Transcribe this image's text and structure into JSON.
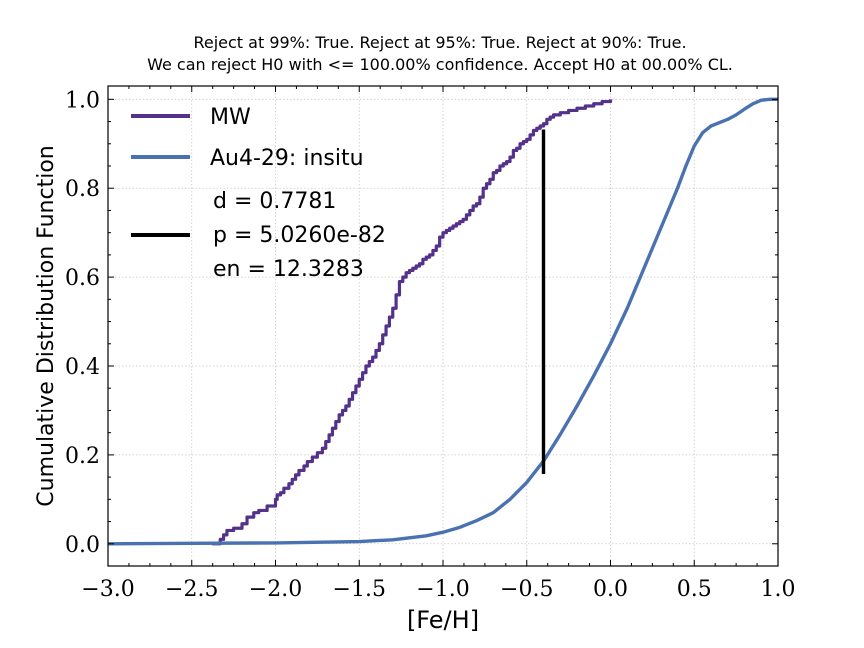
{
  "chart_data": {
    "type": "line",
    "title_lines": [
      "Reject at 99%: True. Reject at 95%: True. Reject at 90%: True.",
      "We can reject H0 with <= 100.00% confidence. Accept H0 at 00.00% CL."
    ],
    "xlabel": "[Fe/H]",
    "ylabel": "Cumulative Distribution Function",
    "xlim": [
      -3.0,
      1.0
    ],
    "ylim": [
      -0.05,
      1.03
    ],
    "x_ticks": [
      -3.0,
      -2.5,
      -2.0,
      -1.5,
      -1.0,
      -0.5,
      0.0,
      0.5,
      1.0
    ],
    "x_tick_labels": [
      "−3.0",
      "−2.5",
      "−2.0",
      "−1.5",
      "−1.0",
      "−0.5",
      "0.0",
      "0.5",
      "1.0"
    ],
    "y_ticks": [
      0.0,
      0.2,
      0.4,
      0.6,
      0.8,
      1.0
    ],
    "y_tick_labels": [
      "0.0",
      "0.2",
      "0.4",
      "0.6",
      "0.8",
      "1.0"
    ],
    "grid": true,
    "legend_position": "upper-left",
    "series": [
      {
        "name": "MW",
        "style": "step",
        "color": "#54318a",
        "x": [
          -2.38,
          -2.33,
          -2.31,
          -2.29,
          -2.25,
          -2.2,
          -2.17,
          -2.13,
          -2.1,
          -2.05,
          -2.0,
          -1.99,
          -1.97,
          -1.95,
          -1.92,
          -1.9,
          -1.88,
          -1.86,
          -1.83,
          -1.81,
          -1.78,
          -1.75,
          -1.72,
          -1.7,
          -1.68,
          -1.66,
          -1.64,
          -1.62,
          -1.6,
          -1.58,
          -1.56,
          -1.54,
          -1.52,
          -1.5,
          -1.48,
          -1.46,
          -1.44,
          -1.42,
          -1.4,
          -1.38,
          -1.36,
          -1.34,
          -1.32,
          -1.3,
          -1.28,
          -1.26,
          -1.24,
          -1.22,
          -1.2,
          -1.18,
          -1.16,
          -1.14,
          -1.12,
          -1.1,
          -1.08,
          -1.06,
          -1.04,
          -1.02,
          -1.0,
          -0.98,
          -0.96,
          -0.94,
          -0.92,
          -0.9,
          -0.88,
          -0.86,
          -0.84,
          -0.82,
          -0.8,
          -0.78,
          -0.76,
          -0.74,
          -0.72,
          -0.7,
          -0.68,
          -0.66,
          -0.64,
          -0.62,
          -0.6,
          -0.58,
          -0.56,
          -0.54,
          -0.52,
          -0.5,
          -0.48,
          -0.46,
          -0.44,
          -0.42,
          -0.4,
          -0.38,
          -0.36,
          -0.34,
          -0.3,
          -0.25,
          -0.2,
          -0.15,
          -0.1,
          -0.05,
          0.0
        ],
        "y": [
          0.0,
          0.01,
          0.02,
          0.03,
          0.035,
          0.045,
          0.06,
          0.07,
          0.075,
          0.085,
          0.1,
          0.11,
          0.115,
          0.125,
          0.135,
          0.145,
          0.155,
          0.165,
          0.175,
          0.185,
          0.195,
          0.205,
          0.215,
          0.23,
          0.245,
          0.26,
          0.275,
          0.29,
          0.3,
          0.31,
          0.325,
          0.34,
          0.355,
          0.37,
          0.385,
          0.4,
          0.41,
          0.42,
          0.435,
          0.45,
          0.47,
          0.49,
          0.51,
          0.53,
          0.56,
          0.59,
          0.6,
          0.61,
          0.615,
          0.62,
          0.625,
          0.63,
          0.64,
          0.645,
          0.65,
          0.66,
          0.67,
          0.69,
          0.7,
          0.705,
          0.71,
          0.715,
          0.72,
          0.725,
          0.73,
          0.74,
          0.75,
          0.76,
          0.765,
          0.78,
          0.8,
          0.81,
          0.82,
          0.835,
          0.84,
          0.85,
          0.855,
          0.86,
          0.87,
          0.885,
          0.89,
          0.9,
          0.905,
          0.91,
          0.92,
          0.93,
          0.935,
          0.94,
          0.945,
          0.955,
          0.96,
          0.965,
          0.97,
          0.975,
          0.98,
          0.985,
          0.99,
          0.995,
          1.0
        ]
      },
      {
        "name": "Au4-29: insitu",
        "style": "line",
        "color": "#4a72b0",
        "x": [
          -3.0,
          -2.5,
          -2.0,
          -1.5,
          -1.3,
          -1.1,
          -1.0,
          -0.9,
          -0.8,
          -0.7,
          -0.6,
          -0.5,
          -0.4,
          -0.3,
          -0.2,
          -0.1,
          0.0,
          0.1,
          0.2,
          0.3,
          0.4,
          0.45,
          0.5,
          0.55,
          0.6,
          0.7,
          0.75,
          0.8,
          0.85,
          0.9,
          0.95,
          1.0
        ],
        "y": [
          0.0,
          0.001,
          0.002,
          0.005,
          0.009,
          0.018,
          0.026,
          0.037,
          0.052,
          0.07,
          0.1,
          0.138,
          0.186,
          0.246,
          0.31,
          0.378,
          0.45,
          0.53,
          0.62,
          0.71,
          0.8,
          0.85,
          0.895,
          0.925,
          0.94,
          0.955,
          0.965,
          0.978,
          0.99,
          0.998,
          1.0,
          1.0
        ]
      }
    ],
    "ks_line": {
      "x": -0.4,
      "y_low": 0.157,
      "y_high": 0.932,
      "color": "#000000"
    },
    "legend_entries": [
      "MW",
      "Au4-29: insitu"
    ],
    "stats": {
      "d": "d = 0.7781",
      "p": "p = 5.0260e-82",
      "en": "en = 12.3283"
    }
  }
}
